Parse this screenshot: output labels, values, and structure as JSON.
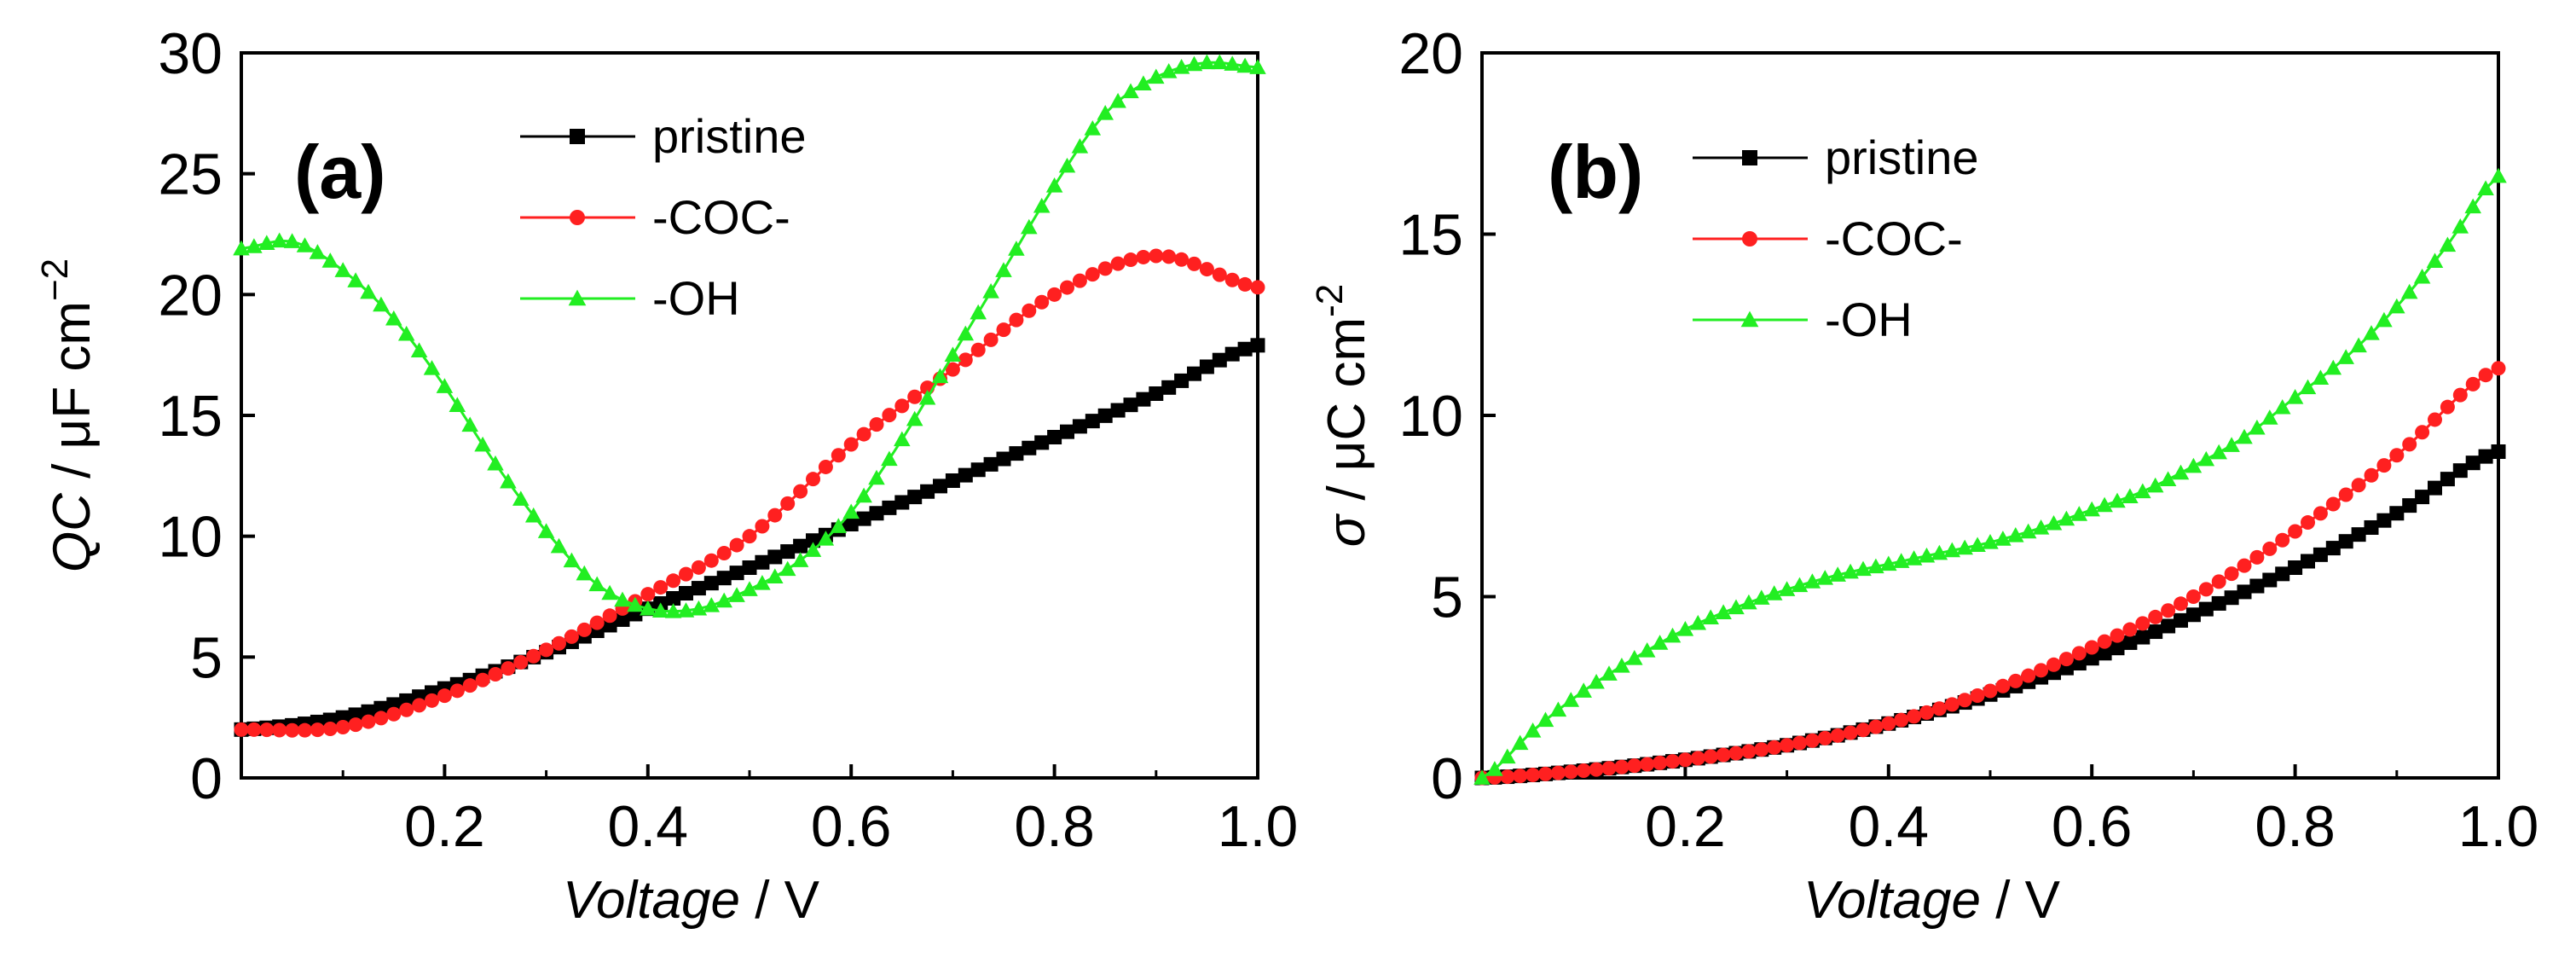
{
  "chart_data": [
    {
      "panel_label": "(a)",
      "type": "line",
      "ylabel_var": "QC",
      "ylabel_unit": "μF cm",
      "ylabel_sup": "−2",
      "xlabel_var": "Voltage",
      "xlabel_unit": "V",
      "xlim": [
        0.0,
        1.0
      ],
      "ylim": [
        0,
        30
      ],
      "xticks": [
        0.2,
        0.4,
        0.6,
        0.8,
        1.0
      ],
      "xtick_labels": [
        "0.2",
        "0.4",
        "0.6",
        "0.8",
        "1.0"
      ],
      "yticks": [
        0,
        5,
        10,
        15,
        20,
        25,
        30
      ],
      "ytick_labels": [
        "0",
        "5",
        "10",
        "15",
        "20",
        "25",
        "30"
      ],
      "legend_position": "top-center",
      "series": [
        {
          "name": "pristine",
          "color": "#000000",
          "marker": "square",
          "x": [
            0.0,
            0.1,
            0.2,
            0.3,
            0.4,
            0.5,
            0.6,
            0.7,
            0.8,
            0.9,
            1.0
          ],
          "y": [
            2.0,
            2.5,
            3.7,
            5.2,
            7.0,
            8.7,
            10.5,
            12.3,
            14.1,
            15.9,
            17.9
          ]
        },
        {
          "name": "-COC-",
          "color": "#ff2020",
          "marker": "circle",
          "x": [
            0.0,
            0.1,
            0.2,
            0.3,
            0.4,
            0.5,
            0.6,
            0.7,
            0.8,
            0.9,
            1.0
          ],
          "y": [
            2.0,
            2.1,
            3.4,
            5.3,
            7.6,
            10.0,
            13.8,
            16.9,
            20.0,
            21.6,
            20.3
          ]
        },
        {
          "name": "-OH",
          "color": "#22ee22",
          "marker": "triangle",
          "x": [
            0.0,
            0.05,
            0.1,
            0.15,
            0.2,
            0.25,
            0.3,
            0.35,
            0.4,
            0.45,
            0.5,
            0.55,
            0.6,
            0.65,
            0.7,
            0.75,
            0.8,
            0.85,
            0.9,
            0.95,
            1.0
          ],
          "y": [
            21.9,
            22.2,
            21.0,
            19.0,
            16.2,
            13.0,
            10.2,
            8.0,
            7.0,
            7.0,
            7.8,
            9.0,
            11.0,
            14.0,
            17.5,
            21.0,
            24.5,
            27.5,
            29.0,
            29.6,
            29.4
          ]
        }
      ]
    },
    {
      "panel_label": "(b)",
      "type": "line",
      "ylabel_var": "σ",
      "ylabel_unit": "μC cm",
      "ylabel_sup": "-2",
      "xlabel_var": "Voltage",
      "xlabel_unit": "V",
      "xlim": [
        0.0,
        1.0
      ],
      "ylim": [
        0,
        20
      ],
      "xticks": [
        0.2,
        0.4,
        0.6,
        0.8,
        1.0
      ],
      "xtick_labels": [
        "0.2",
        "0.4",
        "0.6",
        "0.8",
        "1.0"
      ],
      "yticks": [
        0,
        5,
        10,
        15,
        20
      ],
      "ytick_labels": [
        "0",
        "5",
        "10",
        "15",
        "20"
      ],
      "legend_position": "top-left",
      "series": [
        {
          "name": "pristine",
          "color": "#000000",
          "marker": "square",
          "x": [
            0.0,
            0.1,
            0.2,
            0.3,
            0.4,
            0.5,
            0.6,
            0.7,
            0.8,
            0.9,
            1.0
          ],
          "y": [
            0.0,
            0.2,
            0.5,
            0.9,
            1.5,
            2.3,
            3.3,
            4.5,
            5.8,
            7.3,
            9.0
          ]
        },
        {
          "name": "-COC-",
          "color": "#ff2020",
          "marker": "circle",
          "x": [
            0.0,
            0.1,
            0.2,
            0.3,
            0.4,
            0.5,
            0.6,
            0.7,
            0.8,
            0.9,
            1.0
          ],
          "y": [
            0.0,
            0.2,
            0.5,
            0.9,
            1.5,
            2.4,
            3.6,
            5.0,
            6.8,
            8.9,
            11.3
          ]
        },
        {
          "name": "-OH",
          "color": "#22ee22",
          "marker": "triangle",
          "x": [
            0.0,
            0.05,
            0.1,
            0.15,
            0.2,
            0.25,
            0.3,
            0.35,
            0.4,
            0.45,
            0.5,
            0.55,
            0.6,
            0.65,
            0.7,
            0.75,
            0.8,
            0.85,
            0.9,
            0.95,
            1.0
          ],
          "y": [
            0.0,
            1.3,
            2.4,
            3.3,
            4.1,
            4.7,
            5.2,
            5.6,
            5.9,
            6.2,
            6.5,
            6.9,
            7.4,
            7.9,
            8.6,
            9.4,
            10.5,
            11.6,
            13.0,
            14.7,
            16.6
          ]
        }
      ]
    }
  ]
}
